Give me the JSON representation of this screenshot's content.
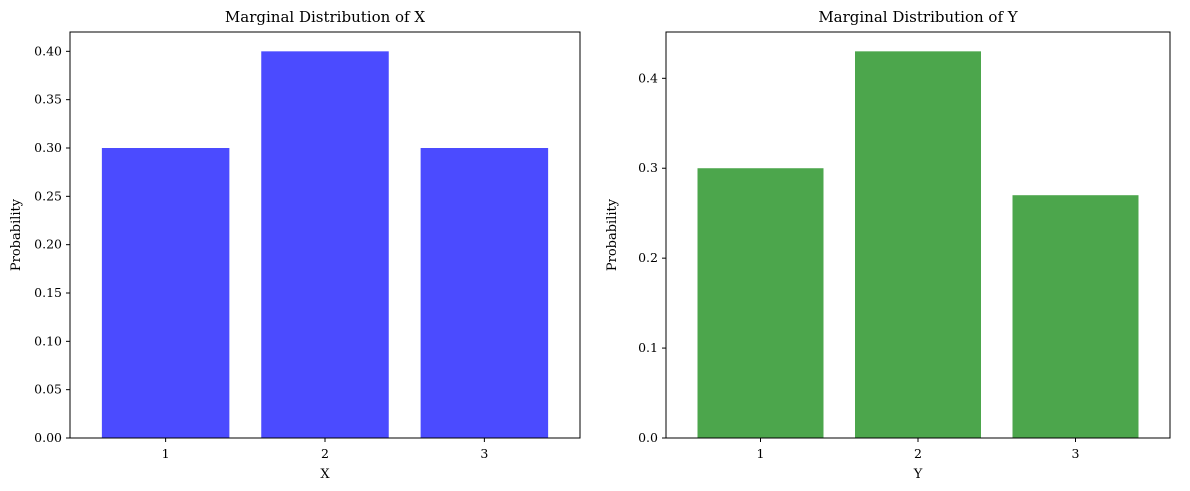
{
  "chart_data": [
    {
      "type": "bar",
      "title": "Marginal Distribution of X",
      "xlabel": "X",
      "ylabel": "Probability",
      "categories": [
        "1",
        "2",
        "3"
      ],
      "values": [
        0.3,
        0.4,
        0.3
      ],
      "ylim": [
        0,
        0.42
      ],
      "yticks": [
        0.0,
        0.05,
        0.1,
        0.15,
        0.2,
        0.25,
        0.3,
        0.35,
        0.4
      ],
      "ytick_labels": [
        "0.00",
        "0.05",
        "0.10",
        "0.15",
        "0.20",
        "0.25",
        "0.30",
        "0.35",
        "0.40"
      ],
      "color": "#4b4bff",
      "grid": false,
      "legend": "none"
    },
    {
      "type": "bar",
      "title": "Marginal Distribution of Y",
      "xlabel": "Y",
      "ylabel": "Probability",
      "categories": [
        "1",
        "2",
        "3"
      ],
      "values": [
        0.3,
        0.43,
        0.27
      ],
      "ylim": [
        0,
        0.4515
      ],
      "yticks": [
        0.0,
        0.1,
        0.2,
        0.3,
        0.4
      ],
      "ytick_labels": [
        "0.0",
        "0.1",
        "0.2",
        "0.3",
        "0.4"
      ],
      "color": "#4ca64c",
      "grid": false,
      "legend": "none"
    }
  ]
}
